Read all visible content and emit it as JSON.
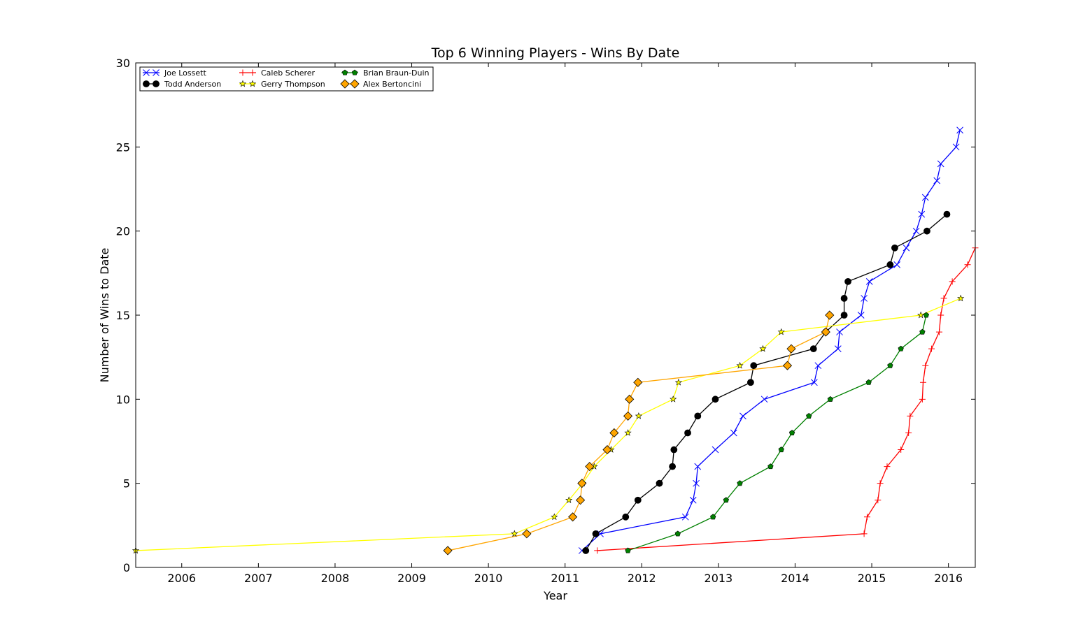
{
  "chart_data": {
    "type": "line",
    "title": "Top 6 Winning Players - Wins By Date",
    "xlabel": "Year",
    "ylabel": "Number of Wins to Date",
    "xlim": [
      2005.4,
      2016.35
    ],
    "ylim": [
      0,
      30
    ],
    "xticks": [
      2006,
      2007,
      2008,
      2009,
      2010,
      2011,
      2012,
      2013,
      2014,
      2015,
      2016
    ],
    "yticks": [
      0,
      5,
      10,
      15,
      20,
      25,
      30
    ],
    "grid": false,
    "legend_position": "top-left",
    "series": [
      {
        "name": "Joe Lossett",
        "color": "#0000ff",
        "marker": "x",
        "x": [
          2011.22,
          2011.46,
          2012.57,
          2012.67,
          2012.71,
          2012.73,
          2012.96,
          2013.2,
          2013.32,
          2013.6,
          2014.25,
          2014.3,
          2014.56,
          2014.58,
          2014.86,
          2014.9,
          2014.97,
          2015.33,
          2015.45,
          2015.58,
          2015.65,
          2015.7,
          2015.85,
          2015.9,
          2016.1,
          2016.15
        ],
        "y": [
          1,
          2,
          3,
          4,
          5,
          6,
          7,
          8,
          9,
          10,
          11,
          12,
          13,
          14,
          15,
          16,
          17,
          18,
          19,
          20,
          21,
          22,
          23,
          24,
          25,
          26
        ]
      },
      {
        "name": "Todd Anderson",
        "color": "#000000",
        "marker": "o",
        "x": [
          2011.27,
          2011.4,
          2011.79,
          2011.95,
          2012.23,
          2012.4,
          2012.42,
          2012.6,
          2012.73,
          2012.96,
          2013.42,
          2013.46,
          2014.24,
          2014.4,
          2014.64,
          2014.64,
          2014.69,
          2015.24,
          2015.3,
          2015.72,
          2015.98
        ],
        "y": [
          1,
          2,
          3,
          4,
          5,
          6,
          7,
          8,
          9,
          10,
          11,
          12,
          13,
          14,
          15,
          16,
          17,
          18,
          19,
          20,
          21
        ]
      },
      {
        "name": "Caleb Scherer",
        "color": "#ff0000",
        "marker": "+",
        "x": [
          2011.42,
          2014.9,
          2014.94,
          2015.08,
          2015.11,
          2015.2,
          2015.38,
          2015.48,
          2015.5,
          2015.66,
          2015.67,
          2015.7,
          2015.78,
          2015.88,
          2015.9,
          2015.94,
          2016.05,
          2016.25,
          2016.35
        ],
        "y": [
          1,
          2,
          3,
          4,
          5,
          6,
          7,
          8,
          9,
          10,
          11,
          12,
          13,
          14,
          15,
          16,
          17,
          18,
          19
        ]
      },
      {
        "name": "Gerry Thompson",
        "color": "#ffff00",
        "marker": "*",
        "x": [
          2005.4,
          2010.34,
          2010.86,
          2011.05,
          2011.23,
          2011.38,
          2011.6,
          2011.82,
          2011.96,
          2012.41,
          2012.48,
          2013.28,
          2013.58,
          2013.82,
          2015.64,
          2016.16
        ],
        "y": [
          1,
          2,
          3,
          4,
          5,
          6,
          7,
          8,
          9,
          10,
          11,
          12,
          13,
          14,
          15,
          16
        ]
      },
      {
        "name": "Brian Braun-Duin",
        "color": "#008000",
        "marker": "p",
        "x": [
          2011.82,
          2012.47,
          2012.93,
          2013.1,
          2013.28,
          2013.68,
          2013.82,
          2013.96,
          2014.18,
          2014.46,
          2014.96,
          2015.24,
          2015.38,
          2015.66,
          2015.71
        ],
        "y": [
          1,
          2,
          3,
          4,
          5,
          6,
          7,
          8,
          9,
          10,
          11,
          12,
          13,
          14,
          15
        ]
      },
      {
        "name": "Alex Bertoncini",
        "color": "#ffa500",
        "marker": "D",
        "x": [
          2009.47,
          2010.5,
          2011.1,
          2011.2,
          2011.22,
          2011.32,
          2011.55,
          2011.64,
          2011.82,
          2011.84,
          2011.95,
          2013.9,
          2013.95,
          2014.4,
          2014.45
        ],
        "y": [
          1,
          2,
          3,
          4,
          5,
          6,
          7,
          8,
          9,
          10,
          11,
          12,
          13,
          14,
          15
        ]
      }
    ]
  }
}
